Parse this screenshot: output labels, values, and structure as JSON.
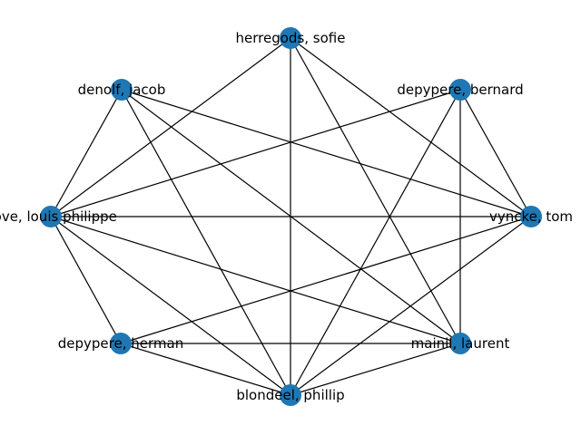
{
  "graph": {
    "node_color": "#1f77b4",
    "edge_color": "#000000",
    "nodes": [
      {
        "id": "herregods",
        "label": "herregods, sofie"
      },
      {
        "id": "denolf",
        "label": "denolf, jacob"
      },
      {
        "id": "depypere_b",
        "label": "depypere, bernard"
      },
      {
        "id": "louis",
        "label": "hove, louis philippe"
      },
      {
        "id": "vyncke",
        "label": "vyncke, tom"
      },
      {
        "id": "depypere_h",
        "label": "depypere, herman"
      },
      {
        "id": "mainil",
        "label": "mainil, laurent"
      },
      {
        "id": "blondeel",
        "label": "blondeel, phillip"
      }
    ],
    "edges": [
      [
        "herregods",
        "louis"
      ],
      [
        "herregods",
        "blondeel"
      ],
      [
        "herregods",
        "mainil"
      ],
      [
        "herregods",
        "vyncke"
      ],
      [
        "denolf",
        "louis"
      ],
      [
        "denolf",
        "blondeel"
      ],
      [
        "denolf",
        "mainil"
      ],
      [
        "denolf",
        "vyncke"
      ],
      [
        "depypere_b",
        "louis"
      ],
      [
        "depypere_b",
        "blondeel"
      ],
      [
        "depypere_b",
        "mainil"
      ],
      [
        "depypere_b",
        "vyncke"
      ],
      [
        "louis",
        "vyncke"
      ],
      [
        "louis",
        "depypere_h"
      ],
      [
        "louis",
        "blondeel"
      ],
      [
        "louis",
        "mainil"
      ],
      [
        "vyncke",
        "depypere_h"
      ],
      [
        "vyncke",
        "blondeel"
      ],
      [
        "depypere_h",
        "mainil"
      ],
      [
        "depypere_h",
        "blondeel"
      ],
      [
        "blondeel",
        "mainil"
      ]
    ]
  }
}
